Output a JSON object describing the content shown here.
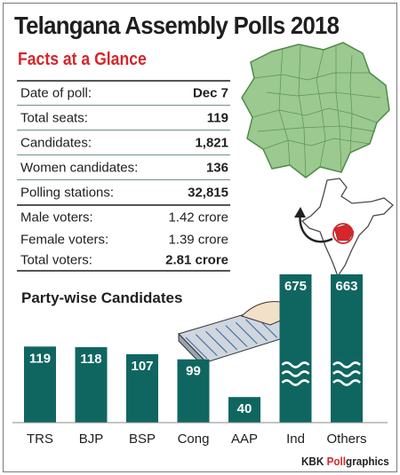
{
  "title": "Telangana Assembly Polls 2018",
  "subtitle": "Facts at a Glance",
  "facts": [
    {
      "label": "Date of poll:",
      "value": "Dec 7"
    },
    {
      "label": "Total seats:",
      "value": "119"
    },
    {
      "label": "Candidates:",
      "value": "1,821"
    },
    {
      "label": "Women candidates:",
      "value": "136"
    },
    {
      "label": "Polling stations:",
      "value": "32,815"
    },
    {
      "label": "Male voters:",
      "value": "1.42 crore"
    },
    {
      "label": "Female voters:",
      "value": "1.39 crore"
    },
    {
      "label": "Total voters:",
      "value": "2.81 crore"
    }
  ],
  "credit": {
    "prefix": "KBK ",
    "accent": "Poll",
    "suffix": "graphics"
  },
  "colors": {
    "bar": "#0f6660",
    "title": "#1f1f1f",
    "accent": "#d6262b",
    "map_fill": "#9bc98f",
    "map_stroke": "#4f8a48",
    "highlight": "#d6262b"
  },
  "chart_data": {
    "type": "bar",
    "title": "Party-wise Candidates",
    "categories": [
      "TRS",
      "BJP",
      "BSP",
      "Cong",
      "AAP",
      "Ind",
      "Others"
    ],
    "values": [
      119,
      118,
      107,
      99,
      40,
      675,
      663
    ],
    "value_labels": [
      "119",
      "118",
      "107",
      "99",
      "40",
      "675",
      "663"
    ],
    "axis_break_categories": [
      "Ind",
      "Others"
    ],
    "ylim": [
      0,
      150
    ],
    "grid": false,
    "legend": "none"
  }
}
